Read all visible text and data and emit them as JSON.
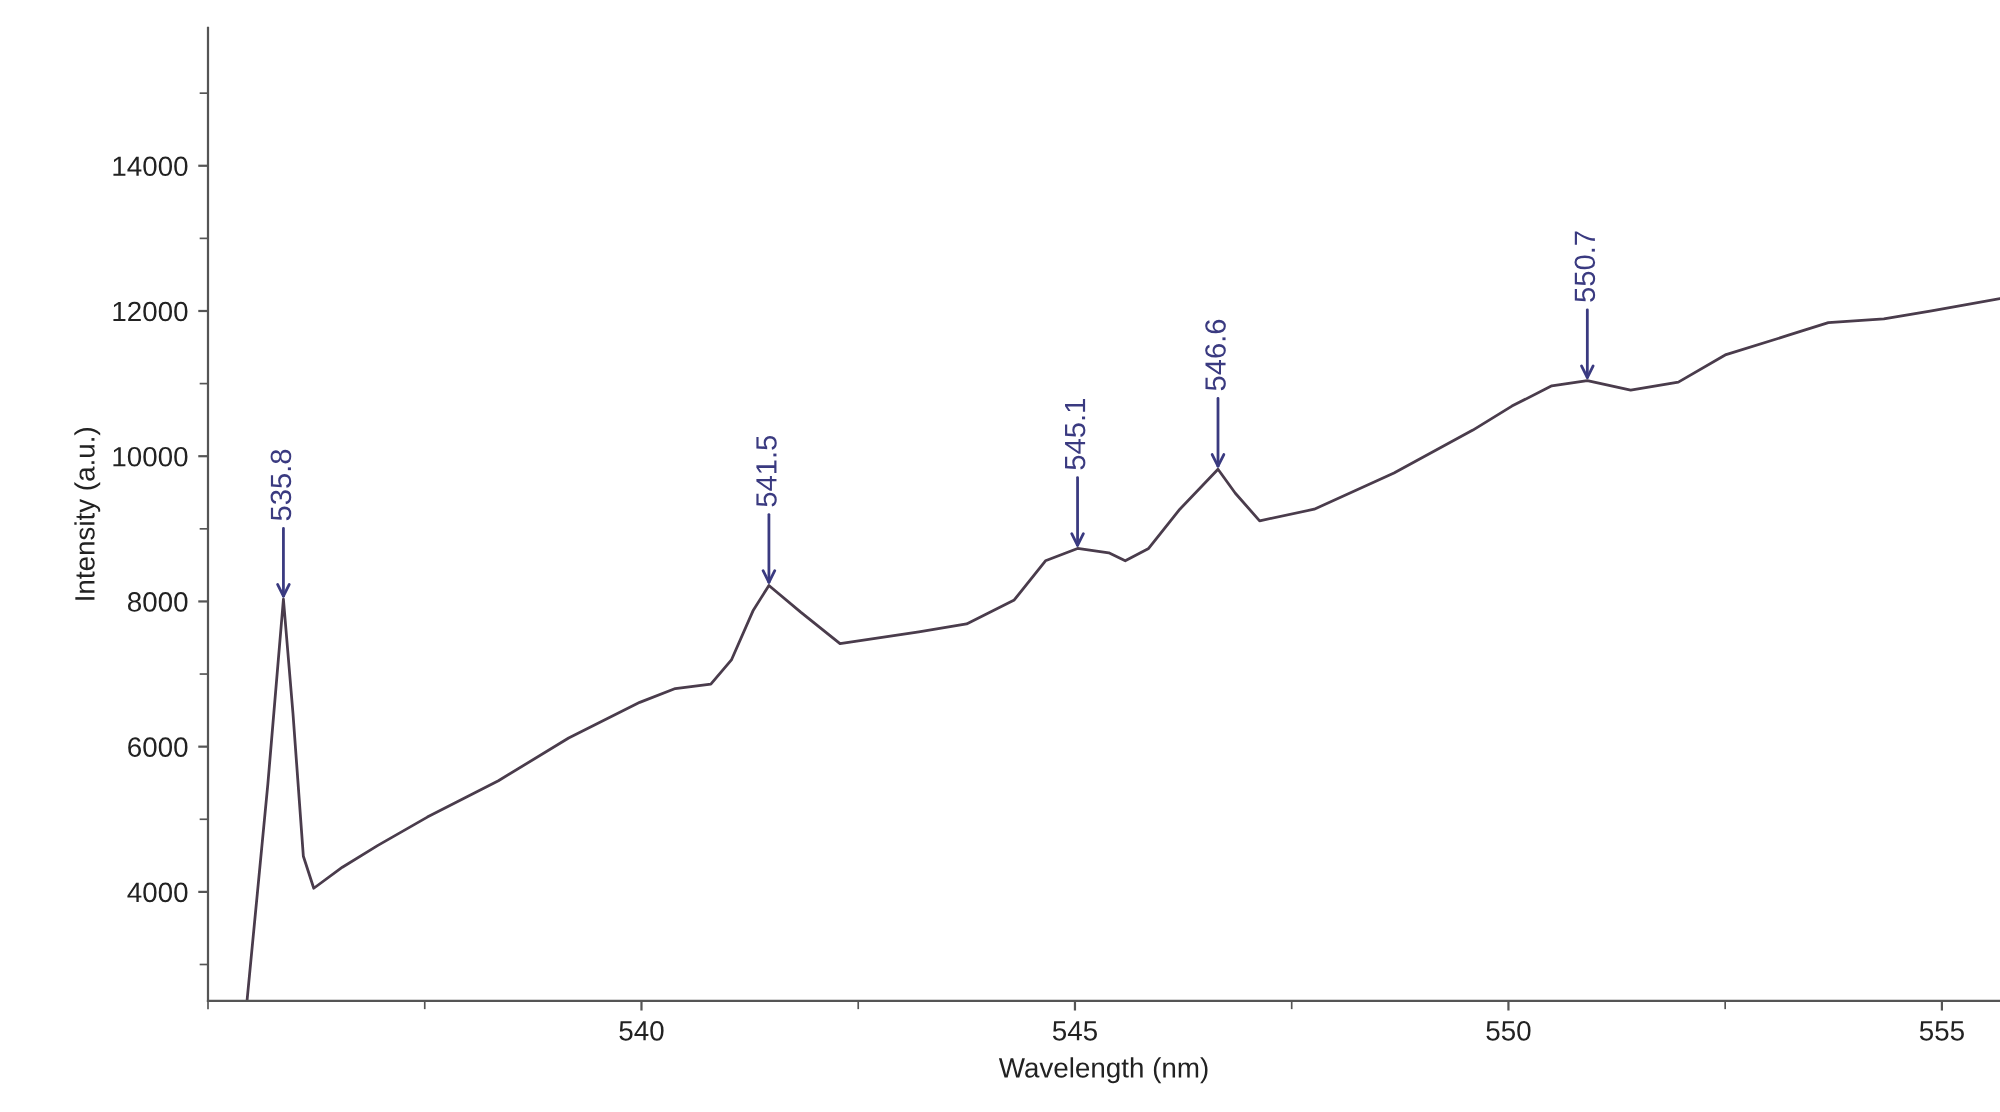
{
  "chart_data": {
    "type": "line",
    "xlabel": "Wavelength (nm)",
    "ylabel": "Intensity (a.u.)",
    "x": [
      535.45,
      535.69,
      535.87,
      535.98,
      536.1,
      536.22,
      536.55,
      536.96,
      537.53,
      538.35,
      539.16,
      539.98,
      540.39,
      540.8,
      541.04,
      541.29,
      541.47,
      541.84,
      542.29,
      543.2,
      543.75,
      544.3,
      544.66,
      545.03,
      545.39,
      545.58,
      545.85,
      546.21,
      546.65,
      546.85,
      547.13,
      547.76,
      548.68,
      549.59,
      550.04,
      550.5,
      550.91,
      551.41,
      551.96,
      552.51,
      553.24,
      553.69,
      554.33,
      554.88,
      555.67
    ],
    "series": [
      {
        "color": "#4a3c4c",
        "values": [
          2500,
          5480,
          8030,
          6460,
          4490,
          4050,
          4340,
          4640,
          5030,
          5530,
          6120,
          6610,
          6800,
          6860,
          7200,
          7880,
          8220,
          7850,
          7420,
          7580,
          7690,
          8020,
          8560,
          8730,
          8670,
          8560,
          8730,
          9270,
          9820,
          9490,
          9110,
          9270,
          9770,
          10360,
          10690,
          10970,
          11040,
          10910,
          11020,
          11400,
          11670,
          11840,
          11890,
          12000,
          12170
        ]
      }
    ],
    "xlim": [
      535,
      555.67
    ],
    "xticks": [
      540,
      545,
      550,
      555
    ],
    "ylim": [
      2500,
      15900
    ],
    "yticks": [
      4000,
      6000,
      8000,
      10000,
      12000,
      14000
    ],
    "grid": false,
    "legend": false,
    "marker": "none",
    "line_style": "solid",
    "annotations": [
      {
        "text": "535.8",
        "x": 535.87,
        "y": 8030
      },
      {
        "text": "541.5",
        "x": 541.47,
        "y": 8220
      },
      {
        "text": "545.1",
        "x": 545.03,
        "y": 8730
      },
      {
        "text": "546.6",
        "x": 546.65,
        "y": 9820
      },
      {
        "text": "550.7",
        "x": 550.91,
        "y": 11040
      }
    ]
  }
}
